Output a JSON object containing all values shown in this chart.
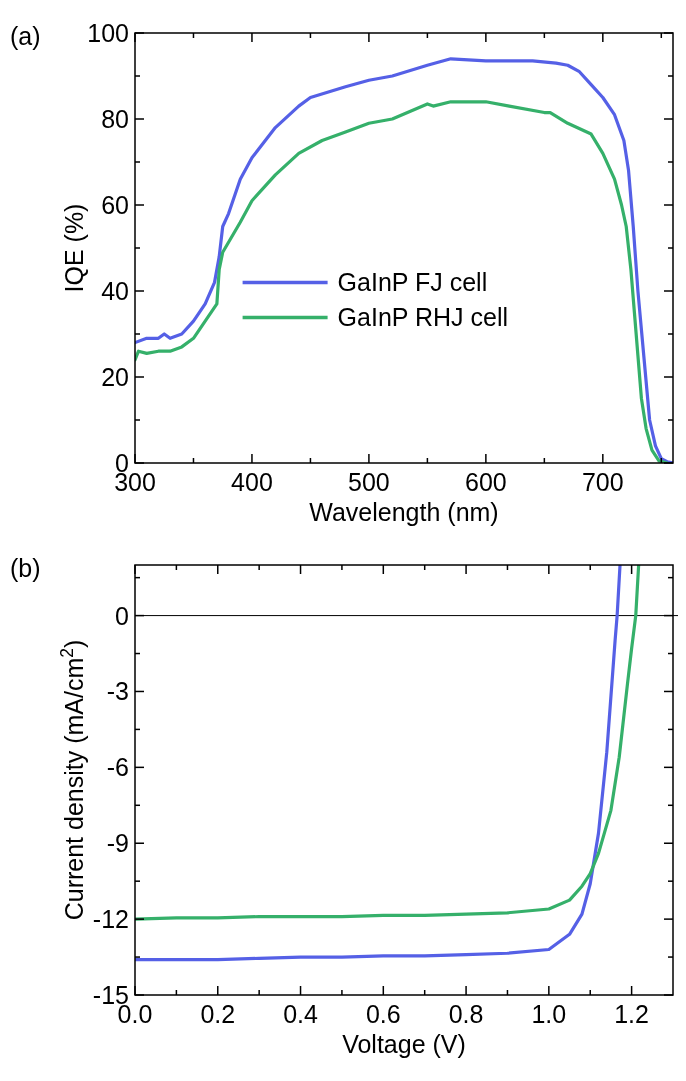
{
  "chart_data": [
    {
      "type": "line",
      "title": "(a)",
      "xlabel": "Wavelength (nm)",
      "ylabel": "IQE (%)",
      "xlim": [
        300,
        760
      ],
      "ylim": [
        0,
        100
      ],
      "xticks": [
        300,
        {
          "value": 350,
          "label": null
        },
        400,
        {
          "value": 450,
          "label": null
        },
        500,
        {
          "value": 550,
          "label": null
        },
        600,
        {
          "value": 650,
          "label": null
        },
        700,
        {
          "value": 750,
          "label": null
        }
      ],
      "yticks": [
        0,
        {
          "value": 10,
          "label": null
        },
        20,
        {
          "value": 30,
          "label": null
        },
        40,
        {
          "value": 50,
          "label": null
        },
        60,
        {
          "value": 70,
          "label": null
        },
        80,
        {
          "value": 90,
          "label": null
        },
        100
      ],
      "legend": "center",
      "grid": false,
      "series": [
        {
          "name": "GaInP FJ cell",
          "color": "#5560e6",
          "x": [
            300,
            310,
            320,
            325,
            330,
            340,
            350,
            360,
            368,
            372,
            375,
            380,
            390,
            400,
            420,
            440,
            450,
            480,
            500,
            520,
            550,
            570,
            600,
            620,
            640,
            660,
            670,
            680,
            690,
            700,
            710,
            718,
            722,
            726,
            730,
            735,
            740,
            745,
            750,
            755,
            760
          ],
          "values": [
            28,
            29,
            29,
            30,
            29,
            30,
            33,
            37,
            42,
            48,
            55,
            58,
            66,
            71,
            78,
            83,
            85,
            87.5,
            89,
            90,
            92.5,
            94,
            93.5,
            93.5,
            93.5,
            93,
            92.5,
            91,
            88,
            85,
            81,
            75,
            68,
            55,
            40,
            25,
            10,
            4,
            1,
            0.3,
            0
          ]
        },
        {
          "name": "GaInP RHJ cell",
          "color": "#35b06a",
          "x": [
            300,
            303,
            310,
            320,
            330,
            340,
            350,
            360,
            370,
            372,
            375,
            390,
            400,
            420,
            440,
            460,
            480,
            500,
            520,
            550,
            555,
            570,
            600,
            620,
            650,
            655,
            670,
            690,
            700,
            710,
            716,
            720,
            724,
            727,
            730,
            733,
            737,
            742,
            748,
            755
          ],
          "values": [
            24,
            26,
            25.5,
            26,
            26,
            27,
            29,
            33,
            37,
            45,
            49,
            56,
            61,
            67,
            72,
            75,
            77,
            79,
            80,
            83.5,
            83,
            84,
            84,
            83,
            81.5,
            81.5,
            79,
            76.5,
            72,
            66,
            60,
            55,
            45,
            35,
            25,
            15,
            8,
            3,
            0.5,
            0
          ]
        }
      ]
    },
    {
      "type": "line",
      "title": "(b)",
      "xlabel": "Voltage (V)",
      "ylabel": "Current density (mA/cm$^{2}$)",
      "xlim": [
        0,
        1.3
      ],
      "ylim": [
        -15,
        2
      ],
      "xticks": [
        {
          "value": 0,
          "label": "0.0"
        },
        {
          "value": 0.1,
          "label": null
        },
        {
          "value": 0.2,
          "label": "0.2"
        },
        {
          "value": 0.3,
          "label": null
        },
        {
          "value": 0.4,
          "label": "0.4"
        },
        {
          "value": 0.5,
          "label": null
        },
        {
          "value": 0.6,
          "label": "0.6"
        },
        {
          "value": 0.7,
          "label": null
        },
        {
          "value": 0.8,
          "label": "0.8"
        },
        {
          "value": 0.9,
          "label": null
        },
        {
          "value": 1,
          "label": "1.0"
        },
        {
          "value": 1.1,
          "label": null
        },
        {
          "value": 1.2,
          "label": "1.2"
        }
      ],
      "yticks": [
        -15,
        {
          "value": -13.5,
          "label": null
        },
        -12,
        {
          "value": -10.5,
          "label": null
        },
        -9,
        {
          "value": -7.5,
          "label": null
        },
        -6,
        {
          "value": -4.5,
          "label": null
        },
        -3,
        {
          "value": -1.5,
          "label": null
        },
        0,
        {
          "value": 1.5,
          "label": null
        }
      ],
      "grid": false,
      "legend": false,
      "ref_lines": [
        {
          "axis": "y",
          "value": 0,
          "color": "#000000"
        }
      ],
      "series": [
        {
          "color": "#5560e6",
          "x": [
            0,
            0.1,
            0.2,
            0.3,
            0.4,
            0.5,
            0.6,
            0.7,
            0.8,
            0.9,
            1.0,
            1.05,
            1.08,
            1.1,
            1.12,
            1.14,
            1.16,
            1.165,
            1.172
          ],
          "values": [
            -13.6,
            -13.6,
            -13.6,
            -13.55,
            -13.5,
            -13.5,
            -13.45,
            -13.45,
            -13.4,
            -13.35,
            -13.2,
            -12.6,
            -11.8,
            -10.6,
            -8.6,
            -5.4,
            -1,
            0,
            2
          ]
        },
        {
          "color": "#35b06a",
          "x": [
            0,
            0.1,
            0.2,
            0.3,
            0.4,
            0.5,
            0.6,
            0.7,
            0.8,
            0.9,
            1.0,
            1.05,
            1.08,
            1.1,
            1.12,
            1.15,
            1.17,
            1.19,
            1.2,
            1.21,
            1.217
          ],
          "values": [
            -12,
            -11.95,
            -11.95,
            -11.9,
            -11.9,
            -11.9,
            -11.85,
            -11.85,
            -11.8,
            -11.75,
            -11.6,
            -11.25,
            -10.7,
            -10.2,
            -9.4,
            -7.7,
            -5.6,
            -2.7,
            -1.3,
            0,
            2
          ]
        }
      ]
    }
  ]
}
